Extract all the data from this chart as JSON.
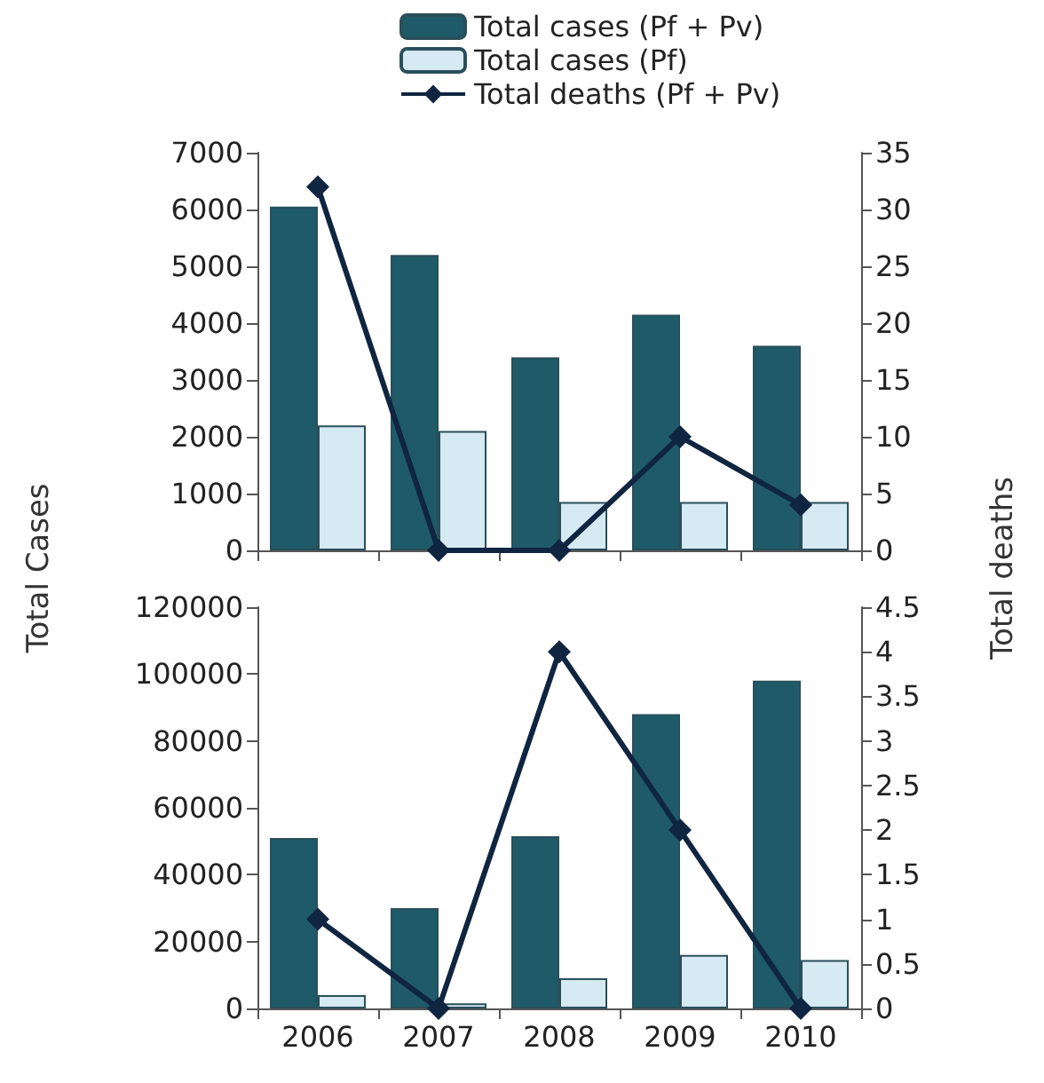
{
  "chart_data": [
    {
      "type": "bar",
      "ylabel": "Total Cases",
      "y2label": "Total deaths",
      "categories": [
        "2006",
        "2007",
        "2008",
        "2009",
        "2010"
      ],
      "series": [
        {
          "name": "Total cases (Pf + Pv)",
          "color": "#1f5a68",
          "values": [
            6050,
            5200,
            3400,
            4150,
            3600
          ]
        },
        {
          "name": "Total cases (Pf)",
          "color": "#d6eaf3",
          "values": [
            2200,
            2100,
            850,
            850,
            850
          ]
        },
        {
          "name": "Total deaths (Pf + Pv)",
          "type": "line",
          "axis": "y2",
          "color": "#0f2540",
          "values": [
            32,
            0,
            0,
            10,
            4
          ]
        }
      ],
      "ylim": [
        0,
        7000
      ],
      "yticks": [
        0,
        1000,
        2000,
        3000,
        4000,
        5000,
        6000,
        7000
      ],
      "y2lim": [
        0,
        35
      ],
      "y2ticks": [
        0,
        5,
        10,
        15,
        20,
        25,
        30,
        35
      ],
      "tick_labels": "y",
      "legend": "top",
      "grid": false,
      "marker": "diamond"
    },
    {
      "type": "bar",
      "categories": [
        "2006",
        "2007",
        "2008",
        "2009",
        "2010"
      ],
      "series": [
        {
          "color": "#1f5a68",
          "values": [
            51000,
            30000,
            51500,
            88000,
            98000
          ]
        },
        {
          "color": "#d6eaf3",
          "values": [
            4000,
            1500,
            9000,
            16000,
            14500
          ]
        },
        {
          "type": "line",
          "axis": "y2",
          "color": "#0f2540",
          "values": [
            1,
            0,
            4,
            2,
            0
          ]
        }
      ],
      "ylim": [
        0,
        120000
      ],
      "yticks": [
        0,
        20000,
        40000,
        60000,
        80000,
        100000,
        120000
      ],
      "y2lim": [
        0,
        4.5
      ],
      "y2ticks": [
        0,
        0.5,
        1,
        1.5,
        2,
        2.5,
        3,
        3.5,
        4,
        4.5
      ],
      "legend": false,
      "grid": false,
      "marker": "diamond"
    }
  ]
}
